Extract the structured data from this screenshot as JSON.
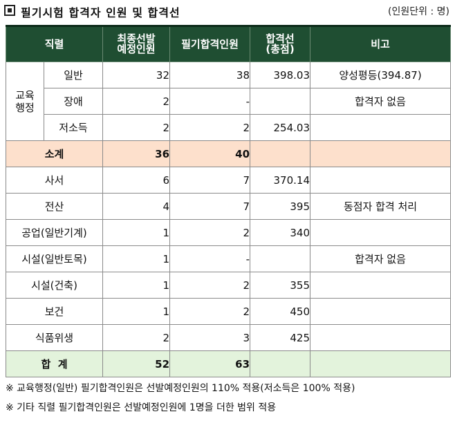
{
  "header": {
    "title": "필기시험 합격자 인원 및 합격선",
    "unit": "(인원단위 : 명)"
  },
  "table": {
    "columns": [
      "직렬",
      "최종선발\n예정인원",
      "필기합격인원",
      "합격선\n(총점)",
      "비고"
    ],
    "group_label": "교육\n행정",
    "group_rows": [
      {
        "name": "일반",
        "planned": "32",
        "passed": "38",
        "cutoff": "398.03",
        "note": "양성평등(394.87)"
      },
      {
        "name": "장애",
        "planned": "2",
        "passed": "-",
        "cutoff": "",
        "note": "합격자 없음"
      },
      {
        "name": "저소득",
        "planned": "2",
        "passed": "2",
        "cutoff": "254.03",
        "note": ""
      }
    ],
    "subtotal": {
      "label": "소계",
      "planned": "36",
      "passed": "40",
      "cutoff": "",
      "note": ""
    },
    "rows": [
      {
        "name": "사서",
        "planned": "6",
        "passed": "7",
        "cutoff": "370.14",
        "note": ""
      },
      {
        "name": "전산",
        "planned": "4",
        "passed": "7",
        "cutoff": "395",
        "note": "동점자 합격 처리"
      },
      {
        "name": "공업(일반기계)",
        "planned": "1",
        "passed": "2",
        "cutoff": "340",
        "note": ""
      },
      {
        "name": "시설(일반토목)",
        "planned": "1",
        "passed": "-",
        "cutoff": "",
        "note": "합격자 없음"
      },
      {
        "name": "시설(건축)",
        "planned": "1",
        "passed": "2",
        "cutoff": "355",
        "note": ""
      },
      {
        "name": "보건",
        "planned": "1",
        "passed": "2",
        "cutoff": "450",
        "note": ""
      },
      {
        "name": "식품위생",
        "planned": "2",
        "passed": "3",
        "cutoff": "425",
        "note": ""
      }
    ],
    "total": {
      "label": "합  계",
      "planned": "52",
      "passed": "63",
      "cutoff": "",
      "note": ""
    }
  },
  "notes": [
    "※ 교육행정(일반) 필기합격인원은 선발예정인원의 110% 적용(저소득은 100% 적용)",
    "※ 기타 직렬 필기합격인원은 선발예정인원에 1명을 더한 범위 적용"
  ]
}
